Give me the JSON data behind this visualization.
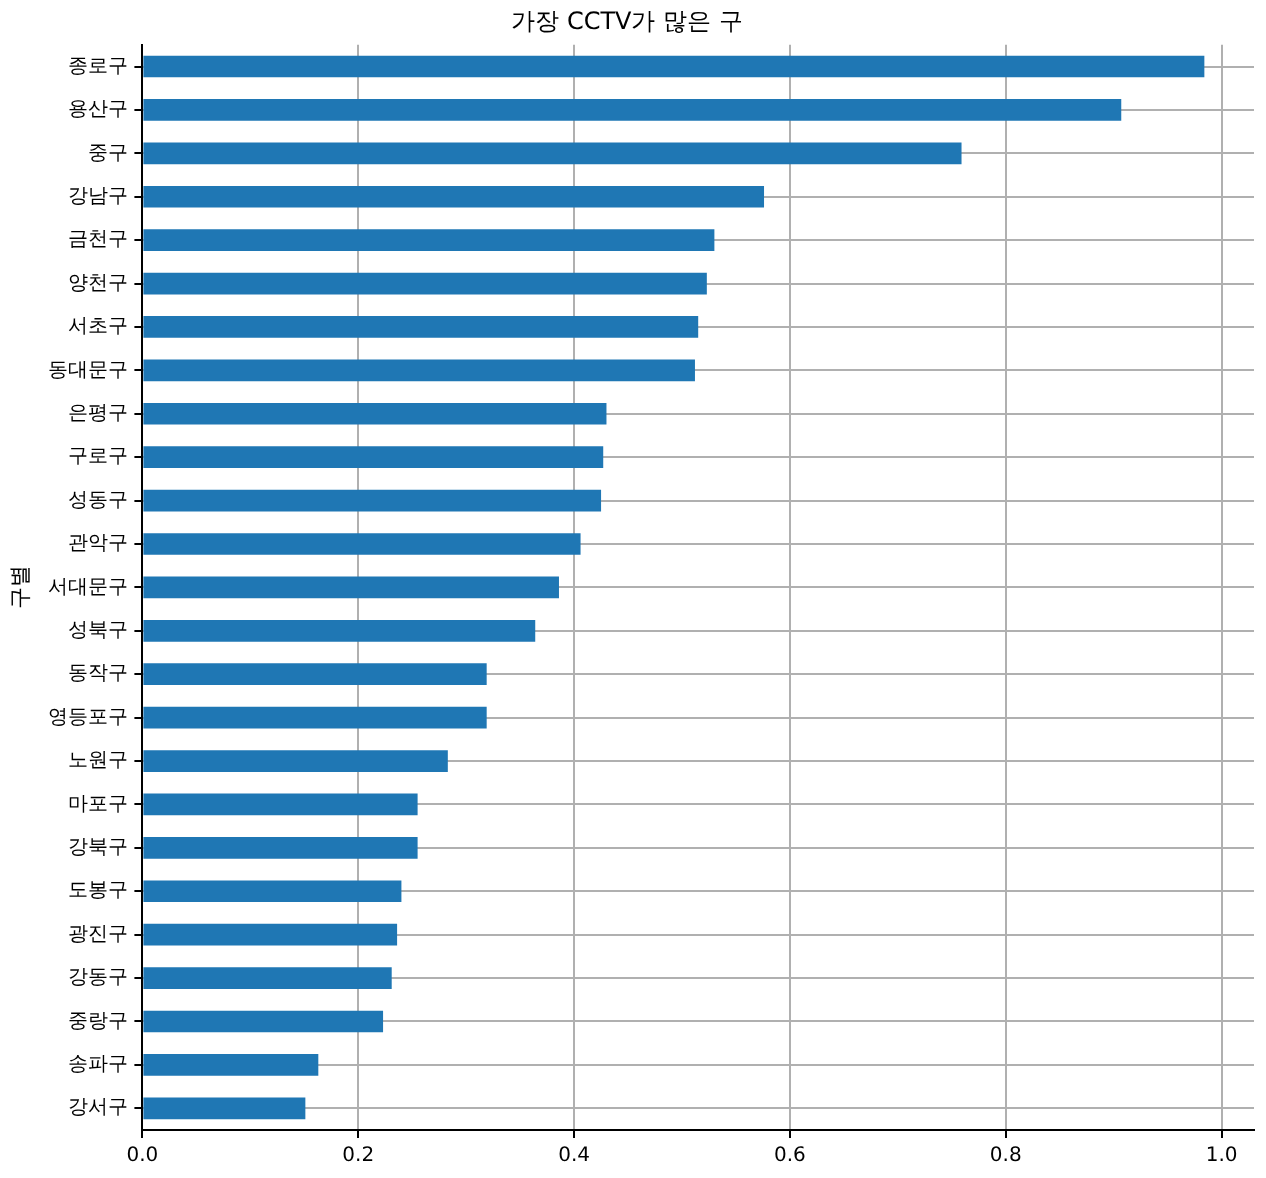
{
  "chart_data": {
    "type": "bar",
    "orientation": "horizontal",
    "title": "가장 CCTV가 많은 구",
    "ylabel": "구별",
    "categories": [
      "종로구",
      "용산구",
      "중구",
      "강남구",
      "금천구",
      "양천구",
      "서초구",
      "동대문구",
      "은평구",
      "구로구",
      "성동구",
      "관악구",
      "서대문구",
      "성북구",
      "동작구",
      "영등포구",
      "노원구",
      "마포구",
      "강북구",
      "도봉구",
      "광진구",
      "강동구",
      "중랑구",
      "송파구",
      "강서구"
    ],
    "values": [
      0.984,
      0.907,
      0.759,
      0.576,
      0.53,
      0.523,
      0.515,
      0.512,
      0.43,
      0.427,
      0.425,
      0.406,
      0.386,
      0.364,
      0.319,
      0.319,
      0.283,
      0.255,
      0.255,
      0.24,
      0.236,
      0.231,
      0.223,
      0.163,
      0.151
    ],
    "color": "#1f77b4",
    "xlim": [
      0,
      1.03
    ],
    "xticks": [
      {
        "value": 0,
        "label": "0.0"
      },
      0.2,
      0.4,
      0.6,
      0.8,
      {
        "value": 1,
        "label": "1.0"
      }
    ],
    "grid": true
  }
}
